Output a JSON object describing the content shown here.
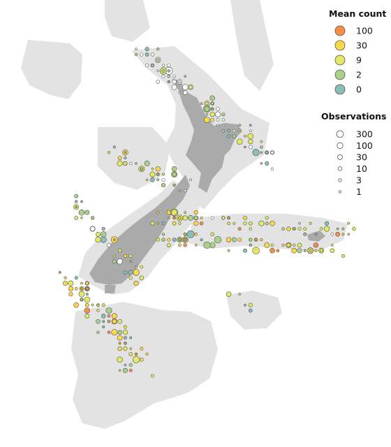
{
  "legend": {
    "mean_count": {
      "title": "Mean count",
      "items": [
        {
          "label": "100",
          "color": "#f98e46"
        },
        {
          "label": "30",
          "color": "#fbd84a"
        },
        {
          "label": "9",
          "color": "#e1ea63"
        },
        {
          "label": "2",
          "color": "#acd08b"
        },
        {
          "label": "0",
          "color": "#8bbdb9"
        }
      ]
    },
    "observations": {
      "title": "Observations",
      "items": [
        {
          "label": "300",
          "value": 300
        },
        {
          "label": "100",
          "value": 100
        },
        {
          "label": "30",
          "value": 30
        },
        {
          "label": "10",
          "value": 10
        },
        {
          "label": "3",
          "value": 3
        },
        {
          "label": "1",
          "value": 1
        }
      ]
    }
  },
  "colors": {
    "land": "#aaaaaa",
    "shelf": "#e3e3e3",
    "marker_stroke": "#555555",
    "empty_marker_fill": "#ffffff"
  }
}
